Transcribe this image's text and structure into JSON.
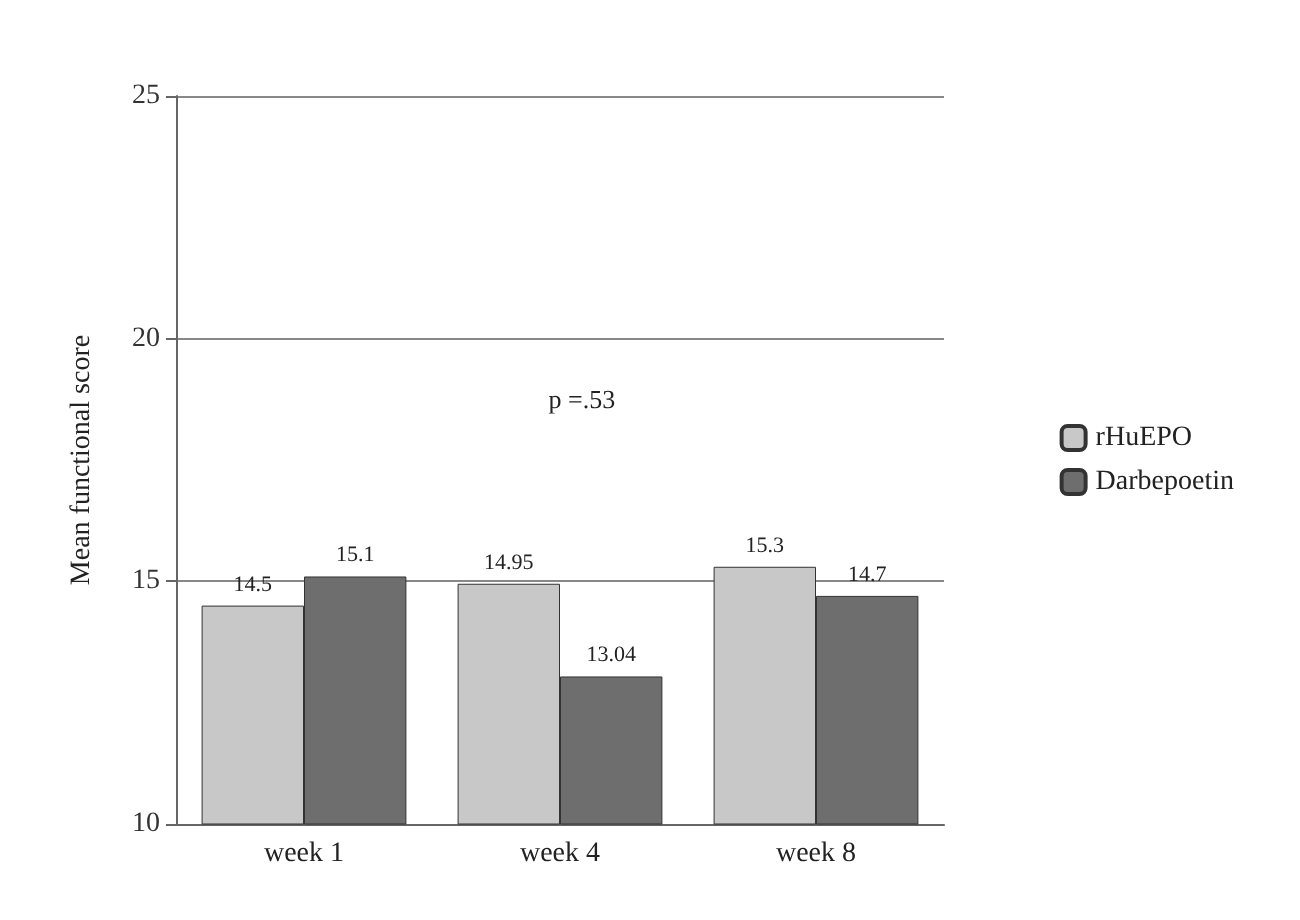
{
  "chart_data": {
    "type": "bar",
    "ylabel": "Mean functional score",
    "categories": [
      "week 1",
      "week 4",
      "week 8"
    ],
    "series": [
      {
        "name": "rHuEPO",
        "color": "#c8c8c8",
        "values": [
          14.5,
          14.95,
          15.3
        ]
      },
      {
        "name": "Darbepoetin",
        "color": "#6e6e6e",
        "values": [
          15.1,
          13.04,
          14.7
        ]
      }
    ],
    "ylim": [
      10,
      25
    ],
    "yticks": [
      10,
      15,
      20,
      25
    ],
    "grid": "y",
    "legend": "right",
    "data_labels": true,
    "annotations": [
      "p =.53"
    ]
  }
}
